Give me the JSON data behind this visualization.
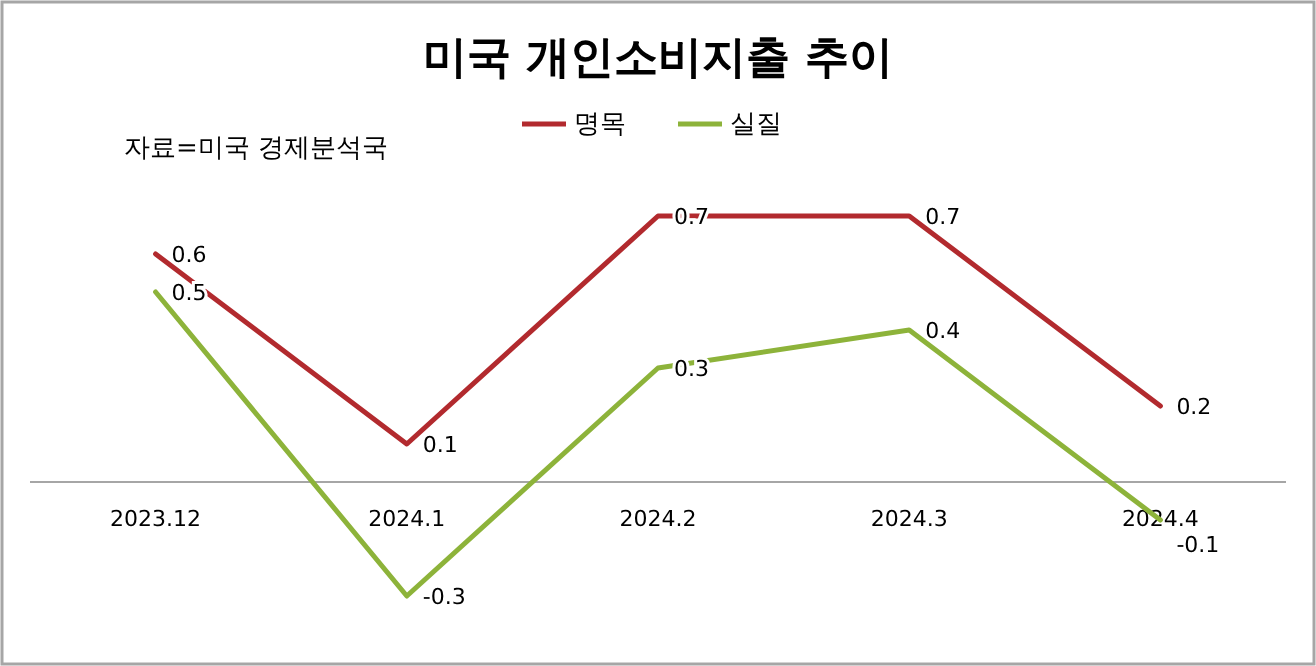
{
  "chart_data": {
    "type": "line",
    "title": "미국 개인소비지출 추이",
    "annotations": [
      "자료=미국 경제분석국"
    ],
    "categories": [
      "2023.12",
      "2024.1",
      "2024.2",
      "2024.3",
      "2024.4"
    ],
    "series": [
      {
        "name": "명목",
        "color": "#b22a2e",
        "values": [
          0.6,
          0.1,
          0.7,
          0.7,
          0.2
        ]
      },
      {
        "name": "실질",
        "color": "#8db33a",
        "values": [
          0.5,
          -0.3,
          0.3,
          0.4,
          -0.1
        ]
      }
    ],
    "data_labels": true,
    "legend": "top",
    "grid": false,
    "marker": "none"
  }
}
